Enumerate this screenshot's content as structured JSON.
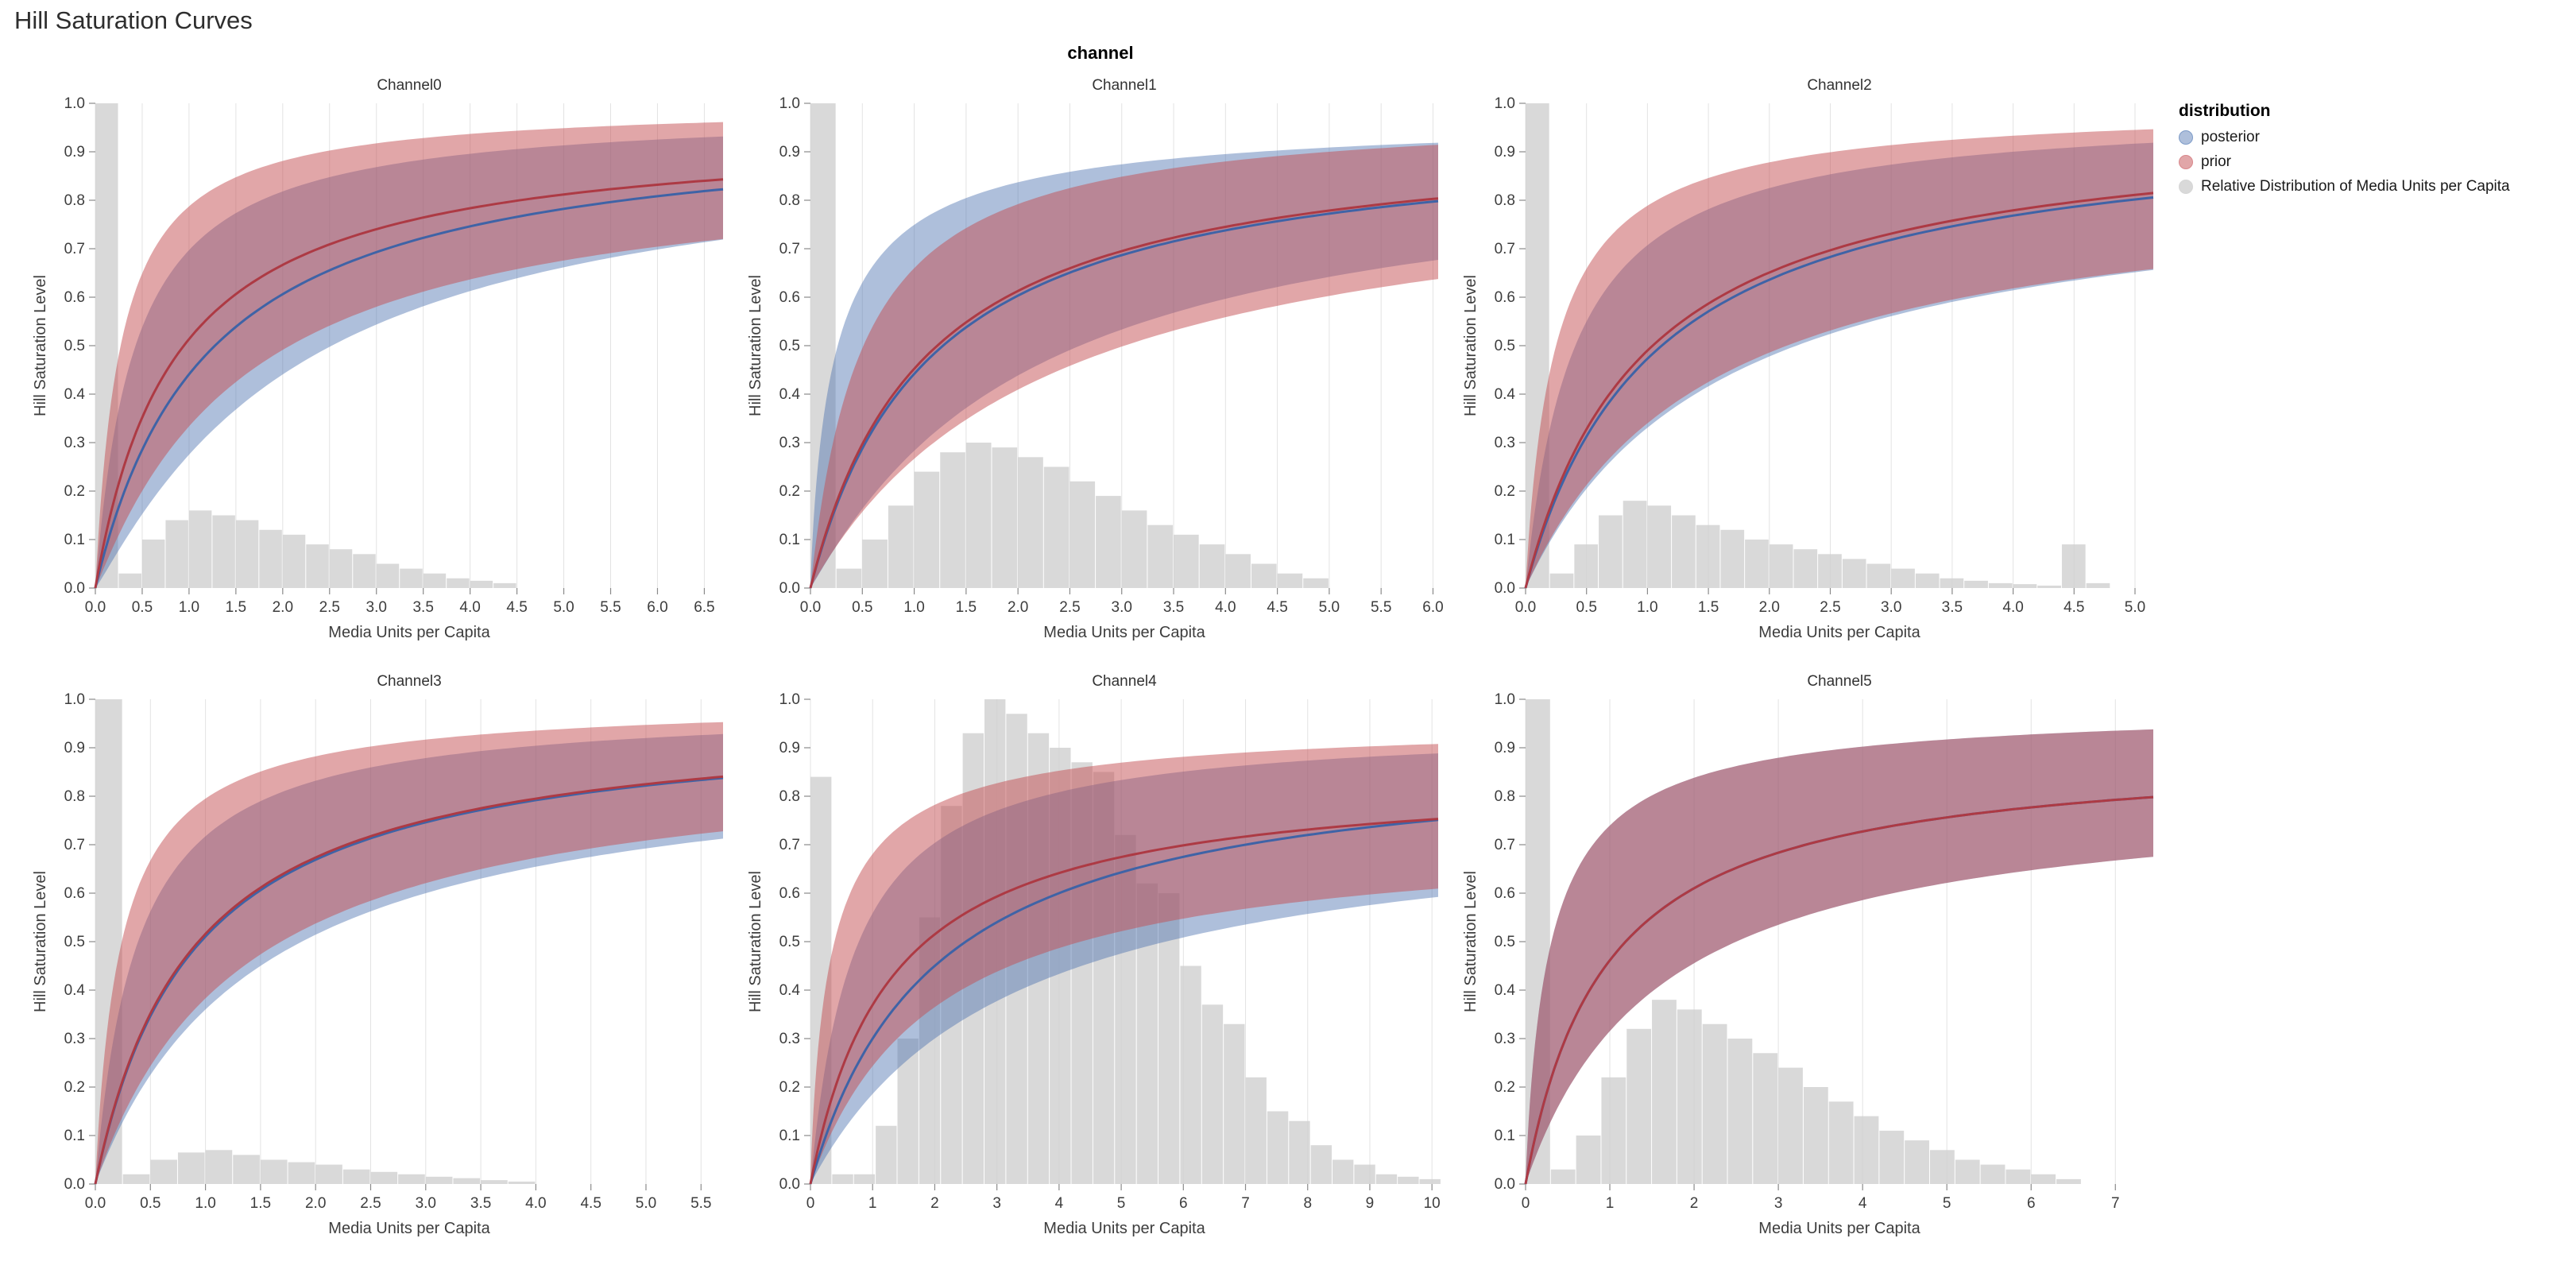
{
  "title": "Hill Saturation Curves",
  "facet_header": "channel",
  "legend": {
    "title": "distribution",
    "items": [
      {
        "id": "posterior",
        "label": "posterior",
        "marker_fill": "rgba(76,114,176,0.45)",
        "marker_stroke": "#7d9bc8"
      },
      {
        "id": "prior",
        "label": "prior",
        "marker_fill": "rgba(196,78,82,0.5)",
        "marker_stroke": "#d9888c"
      },
      {
        "id": "media-distribution",
        "label": "Relative Distribution of Media Units per Capita",
        "marker_fill": "rgba(207,207,207,0.8)",
        "marker_stroke": "#d6d6d6"
      }
    ]
  },
  "chart_data": {
    "type": "line",
    "description": "Hill saturation curves: posterior and prior mean curves with credible-interval bands, overlaid on gray histograms of media units per capita. Curve encoding: y = a * x^h / (x^h + k^h).",
    "title": "Hill Saturation Curves",
    "xlabel": "Media Units per Capita",
    "ylabel": "Hill Saturation Level",
    "ylim": [
      0,
      1
    ],
    "y_ticks": [
      "0.0",
      "0.1",
      "0.2",
      "0.3",
      "0.4",
      "0.5",
      "0.6",
      "0.7",
      "0.8",
      "0.9",
      "1.0"
    ],
    "grid": "vertical",
    "legend_position": "right",
    "style": {
      "posterior_line": "#3f63a6",
      "posterior_band": "#4c72b0",
      "posterior_band_opacity": 0.45,
      "prior_line": "#ad3a44",
      "prior_band": "#c44e52",
      "prior_band_opacity": 0.5,
      "hist_fill": "#cfcfcf",
      "hist_opacity": 0.8,
      "gridline": "#e3e3e3",
      "tick_color": "#8a8a8a",
      "label_color": "#3d3d3d"
    },
    "facets": [
      {
        "title": "Channel0",
        "x_max": 6.7,
        "x_ticks": [
          "0.0",
          "0.5",
          "1.0",
          "1.5",
          "2.0",
          "2.5",
          "3.0",
          "3.5",
          "4.0",
          "4.5",
          "5.0",
          "5.5",
          "6.0",
          "6.5"
        ],
        "posterior": {
          "mean": {
            "a": 0.97,
            "k": 1.2,
            "h": 1.0
          },
          "upper": {
            "a": 0.99,
            "k": 0.42,
            "h": 1.0
          },
          "lower": {
            "a": 0.93,
            "k": 2.2,
            "h": 1.1
          }
        },
        "prior": {
          "mean": {
            "a": 0.95,
            "k": 0.85,
            "h": 1.0
          },
          "upper": {
            "a": 1.0,
            "k": 0.27,
            "h": 1.0
          },
          "lower": {
            "a": 0.88,
            "k": 1.6,
            "h": 1.05
          }
        },
        "hist": {
          "bin_width": 0.25,
          "heights": [
            1.0,
            0.03,
            0.1,
            0.14,
            0.16,
            0.15,
            0.14,
            0.12,
            0.11,
            0.09,
            0.08,
            0.07,
            0.05,
            0.04,
            0.03,
            0.02,
            0.015,
            0.01
          ]
        }
      },
      {
        "title": "Channel1",
        "x_max": 6.05,
        "x_ticks": [
          "0.0",
          "0.5",
          "1.0",
          "1.5",
          "2.0",
          "2.5",
          "3.0",
          "3.5",
          "4.0",
          "4.5",
          "5.0",
          "5.5",
          "6.0"
        ],
        "posterior": {
          "mean": {
            "a": 0.95,
            "k": 1.15,
            "h": 1.0
          },
          "upper": {
            "a": 0.98,
            "k": 0.25,
            "h": 0.85
          },
          "lower": {
            "a": 0.9,
            "k": 2.1,
            "h": 1.05
          }
        },
        "prior": {
          "mean": {
            "a": 0.95,
            "k": 1.1,
            "h": 1.0
          },
          "upper": {
            "a": 0.99,
            "k": 0.5,
            "h": 1.0
          },
          "lower": {
            "a": 0.88,
            "k": 2.3,
            "h": 1.0
          }
        },
        "hist": {
          "bin_width": 0.25,
          "heights": [
            1.0,
            0.04,
            0.1,
            0.17,
            0.24,
            0.28,
            0.3,
            0.29,
            0.27,
            0.25,
            0.22,
            0.19,
            0.16,
            0.13,
            0.11,
            0.09,
            0.07,
            0.05,
            0.03,
            0.02
          ]
        }
      },
      {
        "title": "Channel2",
        "x_max": 5.15,
        "x_ticks": [
          "0.0",
          "0.5",
          "1.0",
          "1.5",
          "2.0",
          "2.5",
          "3.0",
          "3.5",
          "4.0",
          "4.5",
          "5.0"
        ],
        "posterior": {
          "mean": {
            "a": 0.97,
            "k": 1.05,
            "h": 1.0
          },
          "upper": {
            "a": 0.99,
            "k": 0.4,
            "h": 1.0
          },
          "lower": {
            "a": 0.86,
            "k": 1.6,
            "h": 1.0
          }
        },
        "prior": {
          "mean": {
            "a": 0.97,
            "k": 0.98,
            "h": 1.0
          },
          "upper": {
            "a": 1.0,
            "k": 0.25,
            "h": 0.95
          },
          "lower": {
            "a": 0.85,
            "k": 1.5,
            "h": 1.0
          }
        },
        "hist": {
          "bin_width": 0.2,
          "heights": [
            1.0,
            0.03,
            0.09,
            0.15,
            0.18,
            0.17,
            0.15,
            0.13,
            0.12,
            0.1,
            0.09,
            0.08,
            0.07,
            0.06,
            0.05,
            0.04,
            0.03,
            0.02,
            0.015,
            0.01,
            0.008,
            0.005,
            0.09,
            0.01
          ]
        }
      },
      {
        "title": "Channel3",
        "x_max": 5.7,
        "x_ticks": [
          "0.0",
          "0.5",
          "1.0",
          "1.5",
          "2.0",
          "2.5",
          "3.0",
          "3.5",
          "4.0",
          "4.5",
          "5.0",
          "5.5"
        ],
        "posterior": {
          "mean": {
            "a": 0.97,
            "k": 0.9,
            "h": 1.0
          },
          "upper": {
            "a": 0.99,
            "k": 0.38,
            "h": 1.0
          },
          "lower": {
            "a": 0.9,
            "k": 1.5,
            "h": 1.0
          }
        },
        "prior": {
          "mean": {
            "a": 0.97,
            "k": 0.88,
            "h": 1.0
          },
          "upper": {
            "a": 1.0,
            "k": 0.24,
            "h": 0.95
          },
          "lower": {
            "a": 0.9,
            "k": 1.35,
            "h": 1.0
          }
        },
        "hist": {
          "bin_width": 0.25,
          "heights": [
            1.0,
            0.02,
            0.05,
            0.065,
            0.07,
            0.06,
            0.05,
            0.045,
            0.04,
            0.03,
            0.025,
            0.02,
            0.015,
            0.012,
            0.008,
            0.005
          ]
        }
      },
      {
        "title": "Channel4",
        "x_max": 10.1,
        "x_ticks": [
          "0",
          "1",
          "2",
          "3",
          "4",
          "5",
          "6",
          "7",
          "8",
          "9",
          "10"
        ],
        "posterior": {
          "mean": {
            "a": 0.9,
            "k": 2.0,
            "h": 1.0
          },
          "upper": {
            "a": 0.95,
            "k": 0.7,
            "h": 1.0
          },
          "lower": {
            "a": 0.78,
            "k": 3.2,
            "h": 1.0
          }
        },
        "prior": {
          "mean": {
            "a": 0.85,
            "k": 1.3,
            "h": 1.0
          },
          "upper": {
            "a": 0.96,
            "k": 0.35,
            "h": 0.85
          },
          "lower": {
            "a": 0.73,
            "k": 2.0,
            "h": 1.0
          }
        },
        "hist": {
          "bin_width": 0.35,
          "heights": [
            0.84,
            0.02,
            0.02,
            0.12,
            0.3,
            0.55,
            0.78,
            0.93,
            1.0,
            0.97,
            0.93,
            0.9,
            0.87,
            0.85,
            0.72,
            0.62,
            0.6,
            0.45,
            0.37,
            0.33,
            0.22,
            0.15,
            0.13,
            0.08,
            0.05,
            0.04,
            0.02,
            0.015,
            0.01
          ]
        }
      },
      {
        "title": "Channel5",
        "x_max": 7.45,
        "x_ticks": [
          "0",
          "1",
          "2",
          "3",
          "4",
          "5",
          "6",
          "7"
        ],
        "posterior": {
          "mean": {
            "a": 0.9,
            "k": 0.95,
            "h": 1.0
          },
          "upper": {
            "a": 0.99,
            "k": 0.3,
            "h": 0.9
          },
          "lower": {
            "a": 0.82,
            "k": 1.6,
            "h": 1.0
          }
        },
        "prior": {
          "mean": {
            "a": 0.9,
            "k": 0.95,
            "h": 1.0
          },
          "upper": {
            "a": 0.99,
            "k": 0.3,
            "h": 0.9
          },
          "lower": {
            "a": 0.82,
            "k": 1.6,
            "h": 1.0
          }
        },
        "hist": {
          "bin_width": 0.3,
          "heights": [
            1.0,
            0.03,
            0.1,
            0.22,
            0.32,
            0.38,
            0.36,
            0.33,
            0.3,
            0.27,
            0.24,
            0.2,
            0.17,
            0.14,
            0.11,
            0.09,
            0.07,
            0.05,
            0.04,
            0.03,
            0.02,
            0.01
          ]
        }
      }
    ]
  }
}
